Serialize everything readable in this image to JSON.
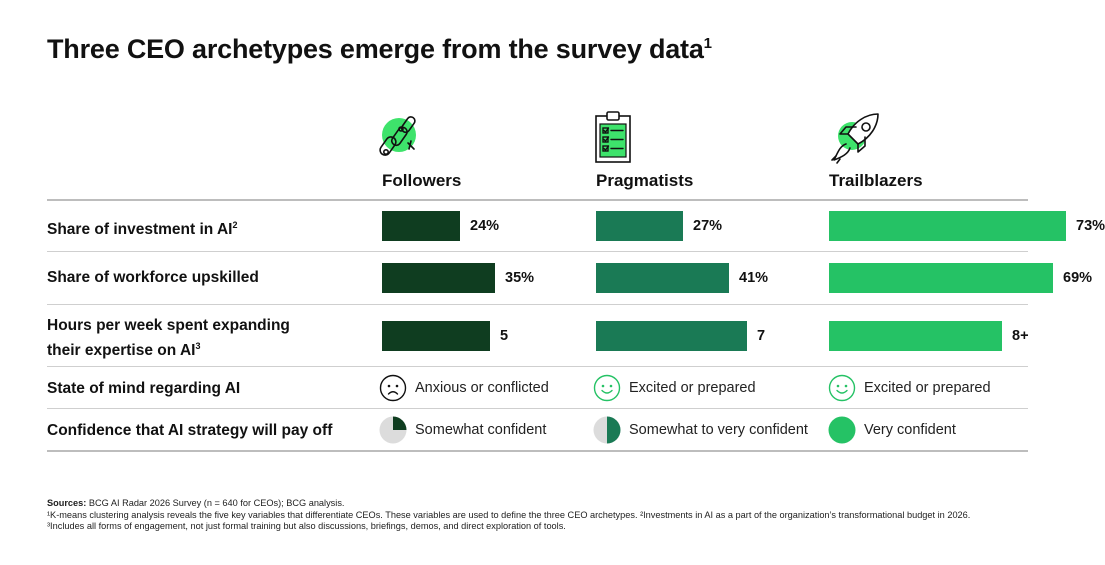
{
  "title": "Three CEO archetypes emerge from the survey data",
  "title_sup": "1",
  "colors": {
    "followers": "#0f3d20",
    "pragmatists": "#1a7a55",
    "trailblazers": "#25c265",
    "icon_accent": "#3ee36b"
  },
  "archetypes": [
    {
      "name": "Followers",
      "icon": "ai-sparkles-icon"
    },
    {
      "name": "Pragmatists",
      "icon": "clipboard-checklist-icon"
    },
    {
      "name": "Trailblazers",
      "icon": "rocket-icon"
    }
  ],
  "chart_data": {
    "type": "bar",
    "categories": [
      "Followers",
      "Pragmatists",
      "Trailblazers"
    ],
    "rows": [
      {
        "label": "Share of investment in AI",
        "sup": "2",
        "values": [
          24,
          27,
          73
        ],
        "display": [
          "24%",
          "27%",
          "73%"
        ],
        "max": 100
      },
      {
        "label": "Share of workforce upskilled",
        "sup": "",
        "values": [
          35,
          41,
          69
        ],
        "display": [
          "35%",
          "41%",
          "69%"
        ],
        "max": 100
      },
      {
        "label": "Hours per week spent expanding their expertise on AI",
        "sup": "3",
        "values": [
          5,
          7,
          8
        ],
        "display": [
          "5",
          "7",
          "8+"
        ],
        "max": 10
      }
    ]
  },
  "state_of_mind": {
    "label": "State of mind regarding AI",
    "cells": [
      {
        "text": "Anxious or conflicted",
        "icon": "anxious-face-icon"
      },
      {
        "text": "Excited or prepared",
        "icon": "smiling-face-icon"
      },
      {
        "text": "Excited or prepared",
        "icon": "smiling-face-icon"
      }
    ]
  },
  "confidence": {
    "label": "Confidence that AI strategy will pay off",
    "cells": [
      {
        "text": "Somewhat confident",
        "fill": 0.25,
        "icon": "quarter-pie-icon"
      },
      {
        "text": "Somewhat to very confident",
        "fill": 0.5,
        "icon": "half-pie-icon"
      },
      {
        "text": "Very confident",
        "fill": 1.0,
        "icon": "full-circle-icon"
      }
    ]
  },
  "notes": {
    "sources_label": "Sources:",
    "sources_text": "BCG AI Radar 2026 Survey (n = 640 for CEOs); BCG analysis.",
    "footnotes": "¹K-means clustering analysis reveals the five key variables that differentiate CEOs. These variables are used to define the three CEO archetypes. ²Investments in AI as a part of the organization’s transformational budget in 2026. ³Includes all forms of engagement, not just formal training but also discussions, briefings, demos, and direct exploration of tools."
  }
}
